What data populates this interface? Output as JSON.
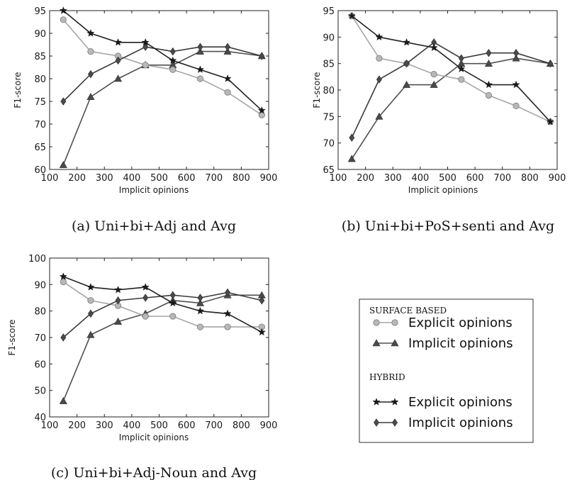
{
  "colors": {
    "surface_explicit": "#a6a6a6",
    "surface_implicit": "#505050",
    "hybrid_explicit": "#222222",
    "hybrid_implicit": "#3a3a3a",
    "marker_light": "#b8b8b8",
    "marker_dark": "#4a4a4a"
  },
  "chart_data": [
    {
      "type": "line",
      "caption": "(a) Uni+bi+Adj and Avg",
      "xlabel": "Implicit opinions",
      "ylabel": "F1-score",
      "xlim": [
        100,
        900
      ],
      "ylim": [
        60,
        95
      ],
      "xticks": [
        "100",
        "200",
        "300",
        "400",
        "500",
        "600",
        "700",
        "800",
        "900"
      ],
      "yticks": [
        "60",
        "65",
        "70",
        "75",
        "80",
        "85",
        "90",
        "95"
      ],
      "x": [
        150,
        250,
        350,
        450,
        550,
        650,
        750,
        875
      ],
      "series": [
        {
          "group": "surface",
          "kind": "explicit",
          "marker": "circle",
          "values": [
            93,
            86,
            85,
            83,
            82,
            80,
            77,
            72
          ]
        },
        {
          "group": "surface",
          "kind": "implicit",
          "marker": "triangle",
          "values": [
            61,
            76,
            80,
            83,
            83,
            86,
            86,
            85
          ]
        },
        {
          "group": "hybrid",
          "kind": "explicit",
          "marker": "star",
          "values": [
            95,
            90,
            88,
            88,
            84,
            82,
            80,
            73
          ]
        },
        {
          "group": "hybrid",
          "kind": "implicit",
          "marker": "diamond",
          "values": [
            75,
            81,
            84,
            87,
            86,
            87,
            87,
            85
          ]
        }
      ]
    },
    {
      "type": "line",
      "caption": "(b) Uni+bi+PoS+senti and Avg",
      "xlabel": "Implicit opinions",
      "ylabel": "F1-score",
      "xlim": [
        100,
        900
      ],
      "ylim": [
        65,
        95
      ],
      "xticks": [
        "100",
        "200",
        "300",
        "400",
        "500",
        "600",
        "700",
        "800",
        "900"
      ],
      "yticks": [
        "65",
        "70",
        "75",
        "80",
        "85",
        "90",
        "95"
      ],
      "x": [
        150,
        250,
        350,
        450,
        550,
        650,
        750,
        875
      ],
      "series": [
        {
          "group": "surface",
          "kind": "explicit",
          "marker": "circle",
          "values": [
            94,
            86,
            85,
            83,
            82,
            79,
            77,
            74
          ]
        },
        {
          "group": "surface",
          "kind": "implicit",
          "marker": "triangle",
          "values": [
            67,
            75,
            81,
            81,
            85,
            85,
            86,
            85
          ]
        },
        {
          "group": "hybrid",
          "kind": "explicit",
          "marker": "star",
          "values": [
            94,
            90,
            89,
            88,
            84,
            81,
            81,
            74
          ]
        },
        {
          "group": "hybrid",
          "kind": "implicit",
          "marker": "diamond",
          "values": [
            71,
            82,
            85,
            89,
            86,
            87,
            87,
            85
          ]
        }
      ]
    },
    {
      "type": "line",
      "caption": "(c) Uni+bi+Adj-Noun and Avg",
      "xlabel": "Implicit opinions",
      "ylabel": "F1-score",
      "xlim": [
        100,
        900
      ],
      "ylim": [
        40,
        100
      ],
      "xticks": [
        "100",
        "200",
        "300",
        "400",
        "500",
        "600",
        "700",
        "800",
        "900"
      ],
      "yticks": [
        "40",
        "50",
        "60",
        "70",
        "80",
        "90",
        "100"
      ],
      "x": [
        150,
        250,
        350,
        450,
        550,
        650,
        750,
        875
      ],
      "series": [
        {
          "group": "surface",
          "kind": "explicit",
          "marker": "circle",
          "values": [
            91,
            84,
            82,
            78,
            78,
            74,
            74,
            74
          ]
        },
        {
          "group": "surface",
          "kind": "implicit",
          "marker": "triangle",
          "values": [
            46,
            71,
            76,
            79,
            84,
            83,
            86,
            86
          ]
        },
        {
          "group": "hybrid",
          "kind": "explicit",
          "marker": "star",
          "values": [
            93,
            89,
            88,
            89,
            83,
            80,
            79,
            72
          ]
        },
        {
          "group": "hybrid",
          "kind": "implicit",
          "marker": "diamond",
          "values": [
            70,
            79,
            84,
            85,
            86,
            85,
            87,
            84
          ]
        }
      ]
    }
  ],
  "legend": {
    "surface_title": "SURFACE BASED",
    "hybrid_title": "HYBRID",
    "entries": [
      {
        "group": "surface",
        "marker": "circle",
        "label": "Explicit opinions"
      },
      {
        "group": "surface",
        "marker": "triangle",
        "label": "Implicit opinions"
      },
      {
        "group": "hybrid",
        "marker": "star",
        "label": "Explicit opinions"
      },
      {
        "group": "hybrid",
        "marker": "diamond",
        "label": "Implicit opinions"
      }
    ]
  }
}
